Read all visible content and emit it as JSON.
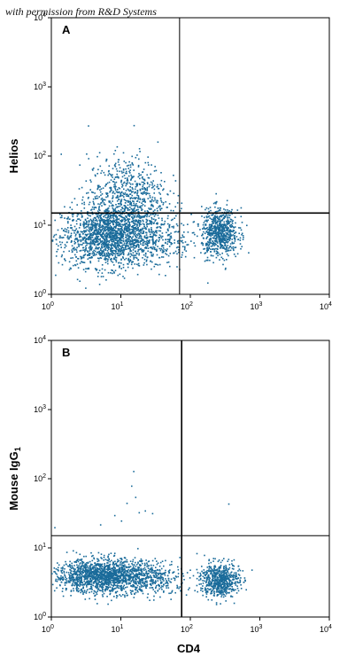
{
  "watermark": "with permission from R&D Systems",
  "colors": {
    "dots": "#1a6b9a",
    "axis": "#000000",
    "background": "#ffffff"
  },
  "chart_data": [
    {
      "type": "scatter",
      "panel": "A",
      "xlabel": "CD4",
      "ylabel": "Helios",
      "x_scale": "log",
      "y_scale": "log",
      "xlim": [
        1,
        10000
      ],
      "ylim": [
        1,
        10000
      ],
      "x_ticks": [
        {
          "value": 1,
          "base": "10",
          "exp": "0"
        },
        {
          "value": 10,
          "base": "10",
          "exp": "1"
        },
        {
          "value": 100,
          "base": "10",
          "exp": "2"
        },
        {
          "value": 1000,
          "base": "10",
          "exp": "3"
        },
        {
          "value": 10000,
          "base": "10",
          "exp": "4"
        }
      ],
      "y_ticks": [
        {
          "value": 1,
          "base": "10",
          "exp": "0"
        },
        {
          "value": 10,
          "base": "10",
          "exp": "1"
        },
        {
          "value": 100,
          "base": "10",
          "exp": "2"
        },
        {
          "value": 1000,
          "base": "10",
          "exp": "3"
        },
        {
          "value": 10000,
          "base": "10",
          "exp": "4"
        }
      ],
      "quadrant_gates": {
        "x": 70,
        "y": 15
      },
      "populations": [
        {
          "center_x": 7,
          "center_y": 7,
          "spread_x": 0.35,
          "spread_y": 0.22,
          "count": 1800
        },
        {
          "center_x": 12,
          "center_y": 28,
          "spread_x": 0.28,
          "spread_y": 0.28,
          "count": 650
        },
        {
          "center_x": 260,
          "center_y": 8,
          "spread_x": 0.13,
          "spread_y": 0.17,
          "count": 700
        },
        {
          "center_x": 40,
          "center_y": 6,
          "spread_x": 0.25,
          "spread_y": 0.2,
          "count": 200
        }
      ]
    },
    {
      "type": "scatter",
      "panel": "B",
      "xlabel": "CD4",
      "ylabel": "Mouse IgG",
      "ylabel_subscript": "1",
      "x_scale": "log",
      "y_scale": "log",
      "xlim": [
        1,
        10000
      ],
      "ylim": [
        1,
        10000
      ],
      "x_ticks": [
        {
          "value": 1,
          "base": "10",
          "exp": "0"
        },
        {
          "value": 10,
          "base": "10",
          "exp": "1"
        },
        {
          "value": 100,
          "base": "10",
          "exp": "2"
        },
        {
          "value": 1000,
          "base": "10",
          "exp": "3"
        },
        {
          "value": 10000,
          "base": "10",
          "exp": "4"
        }
      ],
      "y_ticks": [
        {
          "value": 1,
          "base": "10",
          "exp": "0"
        },
        {
          "value": 10,
          "base": "10",
          "exp": "1"
        },
        {
          "value": 100,
          "base": "10",
          "exp": "2"
        },
        {
          "value": 1000,
          "base": "10",
          "exp": "3"
        },
        {
          "value": 10000,
          "base": "10",
          "exp": "4"
        }
      ],
      "quadrant_gates": {
        "x": 75,
        "y": 15
      },
      "populations": [
        {
          "center_x": 6,
          "center_y": 4,
          "spread_x": 0.38,
          "spread_y": 0.12,
          "count": 1700
        },
        {
          "center_x": 260,
          "center_y": 3.5,
          "spread_x": 0.14,
          "spread_y": 0.12,
          "count": 650
        },
        {
          "center_x": 35,
          "center_y": 3.5,
          "spread_x": 0.2,
          "spread_y": 0.12,
          "count": 150
        }
      ],
      "outliers": [
        {
          "x": 15,
          "y": 130
        },
        {
          "x": 14,
          "y": 80
        },
        {
          "x": 16,
          "y": 55
        },
        {
          "x": 12,
          "y": 45
        },
        {
          "x": 22,
          "y": 35
        },
        {
          "x": 18,
          "y": 33
        },
        {
          "x": 8,
          "y": 30
        },
        {
          "x": 10,
          "y": 25
        },
        {
          "x": 350,
          "y": 44
        },
        {
          "x": 1.1,
          "y": 20
        },
        {
          "x": 5,
          "y": 22
        },
        {
          "x": 28,
          "y": 32
        }
      ]
    }
  ]
}
